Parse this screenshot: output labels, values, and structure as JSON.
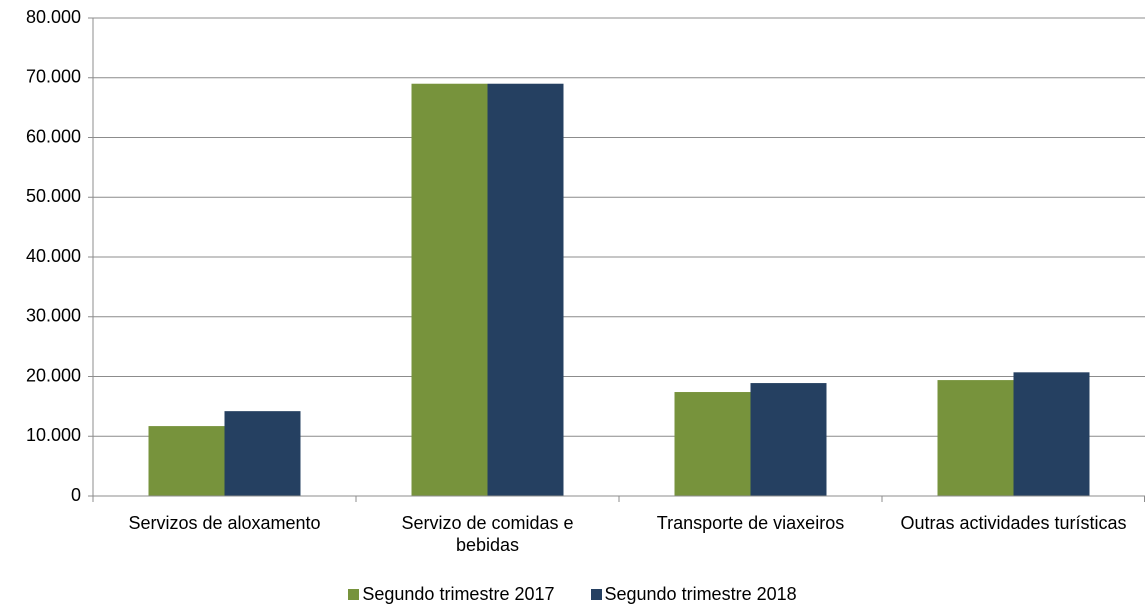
{
  "chart_data": {
    "type": "bar",
    "categories": [
      "Servizos de aloxamento",
      "Servizo de comidas e bebidas",
      "Transporte de viaxeiros",
      "Outras actividades turísticas"
    ],
    "series": [
      {
        "name": "Segundo trimestre 2017",
        "color": "#77933c",
        "values": [
          11700,
          69000,
          17400,
          19400
        ]
      },
      {
        "name": "Segundo trimestre 2018",
        "color": "#254061",
        "values": [
          14200,
          69000,
          18900,
          20700
        ]
      }
    ],
    "ylim": [
      0,
      80000
    ],
    "yticks": [
      0,
      {
        "value": 10000,
        "label": "10.000"
      },
      {
        "value": 20000,
        "label": "20.000"
      },
      {
        "value": 30000,
        "label": "30.000"
      },
      {
        "value": 40000,
        "label": "40.000"
      },
      {
        "value": 50000,
        "label": "50.000"
      },
      {
        "value": 60000,
        "label": "60.000"
      },
      {
        "value": 70000,
        "label": "70.000"
      },
      {
        "value": 80000,
        "label": "80.000"
      }
    ],
    "grid": true,
    "legend": "bottom"
  }
}
